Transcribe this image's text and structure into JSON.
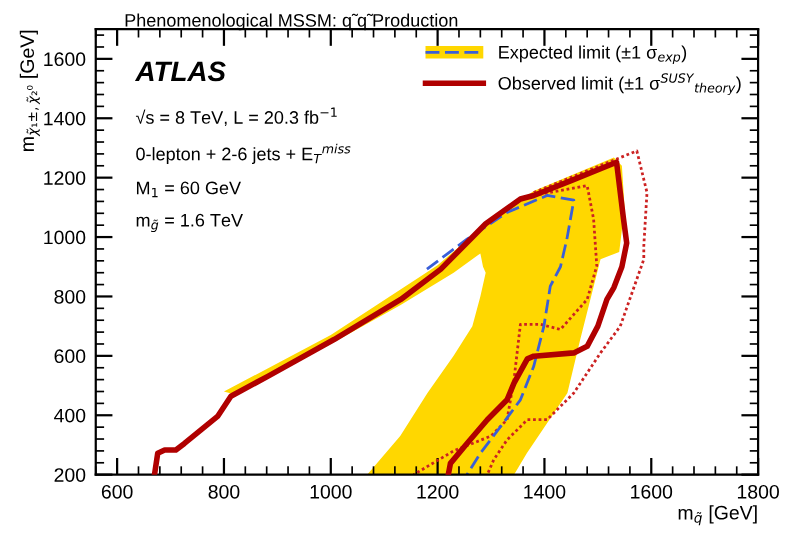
{
  "chart_data": {
    "type": "line",
    "title": "Phenomenological MSSM: q̃ q̃ Production",
    "xlabel": "m$_{q̃}$ [GeV]",
    "ylabel": "m$_{χ̃₁±,χ̃₂⁰}$ [GeV]",
    "annotations": [
      "ATLAS",
      "√s = 8 TeV, L = 20.3 fb$^{−1}$",
      "0-lepton + 2-6 jets + E$_{T}$$^{miss}$",
      "M$_{1}$ = 60 GeV",
      "m$_{g̃}$ = 1.6 TeV"
    ],
    "series": [
      {
        "type": "area",
        "color": "#ffd700",
        "x": [
          800,
          1000,
          1200,
          1300,
          1380,
          1530,
          1545,
          1550,
          1540,
          1505,
          1467,
          1443,
          1367,
          1343,
          1068,
          1130,
          1181,
          1230,
          1265,
          1280,
          1290,
          1285,
          1280,
          1230,
          1130,
          1000,
          820
        ],
        "values": [
          480,
          670,
          905,
          1060,
          1155,
          1268,
          1240,
          1100,
          950,
          925,
          655,
          475,
          272,
          200,
          200,
          330,
          475,
          600,
          700,
          800,
          880,
          900,
          945,
          880,
          770,
          640,
          470
        ]
      },
      {
        "color": "#cc2222",
        "line_style": "dotted",
        "x": [
          1380,
          1455,
          1573,
          1592,
          1586,
          1586,
          1542,
          1505,
          1455,
          1405,
          1368,
          1330,
          1305,
          1293
        ],
        "values": [
          1150,
          1205,
          1290,
          1150,
          970,
          925,
          700,
          610,
          475,
          385,
          385,
          317,
          250,
          200
        ]
      },
      {
        "color": "#cc2222",
        "line_style": "dotted",
        "x": [
          1380,
          1480,
          1492,
          1498,
          1480,
          1430,
          1393,
          1355,
          1343,
          1330,
          1300,
          1230,
          1155
        ],
        "values": [
          1140,
          1173,
          1061,
          903,
          790,
          689,
          706,
          706,
          520,
          385,
          330,
          280,
          200
        ]
      },
      {
        "name": "Expected limit (±1 σ$_{exp}$)",
        "color": "#3a5fd8",
        "line_style": "dashed",
        "x": [
          1180,
          1255,
          1330,
          1405,
          1455,
          1442,
          1430,
          1411,
          1399,
          1380,
          1355,
          1318,
          1280,
          1255
        ],
        "values": [
          892,
          993,
          1083,
          1140,
          1124,
          993,
          900,
          835,
          700,
          565,
          452,
          362,
          272,
          200
        ]
      },
      {
        "name": "Observed limit (±1 σ$^{SUSY}$$_{theory}$)",
        "color": "#b00000",
        "line_style": "solid",
        "x": [
          670,
          676,
          689,
          710,
          726,
          757,
          788,
          813,
          882,
          1006,
          1131,
          1206,
          1290,
          1355,
          1380,
          1450,
          1535,
          1548,
          1554,
          1545,
          1530,
          1517,
          1500,
          1480,
          1455,
          1380,
          1368,
          1343,
          1330,
          1293,
          1255,
          1224,
          1220
        ],
        "values": [
          200,
          272,
          283,
          283,
          305,
          351,
          396,
          464,
          531,
          655,
          790,
          892,
          1045,
          1128,
          1140,
          1190,
          1252,
          1061,
          980,
          900,
          830,
          790,
          700,
          632,
          610,
          599,
          590,
          508,
          452,
          385,
          305,
          238,
          200
        ]
      }
    ],
    "xlim": [
      560,
      1800
    ],
    "xticks": [
      600,
      800,
      1000,
      1200,
      1400,
      1600,
      1800
    ],
    "ylim": [
      200,
      1700
    ],
    "yticks": [
      200,
      400,
      600,
      800,
      1000,
      1200,
      1400,
      1600
    ],
    "grid": false,
    "legend": "top right",
    "marker": "none"
  }
}
